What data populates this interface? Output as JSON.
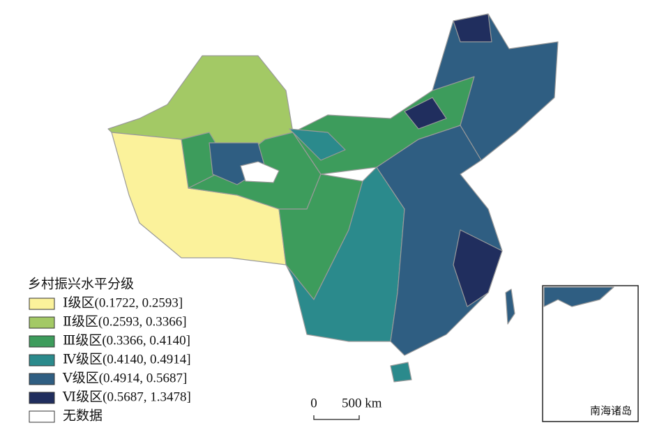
{
  "legend": {
    "title": "乡村振兴水平分级",
    "items": [
      {
        "label": "Ⅰ级区(0.1722, 0.2593]",
        "color": "#fbf29b"
      },
      {
        "label": "Ⅱ级区(0.2593, 0.3366]",
        "color": "#a3c965"
      },
      {
        "label": "Ⅲ级区(0.3366, 0.4140]",
        "color": "#3d9c5c"
      },
      {
        "label": "Ⅳ级区(0.4140, 0.4914]",
        "color": "#2b8a8c"
      },
      {
        "label": "Ⅴ级区(0.4914, 0.5687]",
        "color": "#2f5e82"
      },
      {
        "label": "Ⅵ级区(0.5687, 1.3478]",
        "color": "#202e5e"
      }
    ],
    "no_data": {
      "label": "无数据",
      "color": "#ffffff"
    }
  },
  "scale_bar": {
    "start": "0",
    "end": "500 km"
  },
  "inset": {
    "label": "南海诸岛"
  }
}
